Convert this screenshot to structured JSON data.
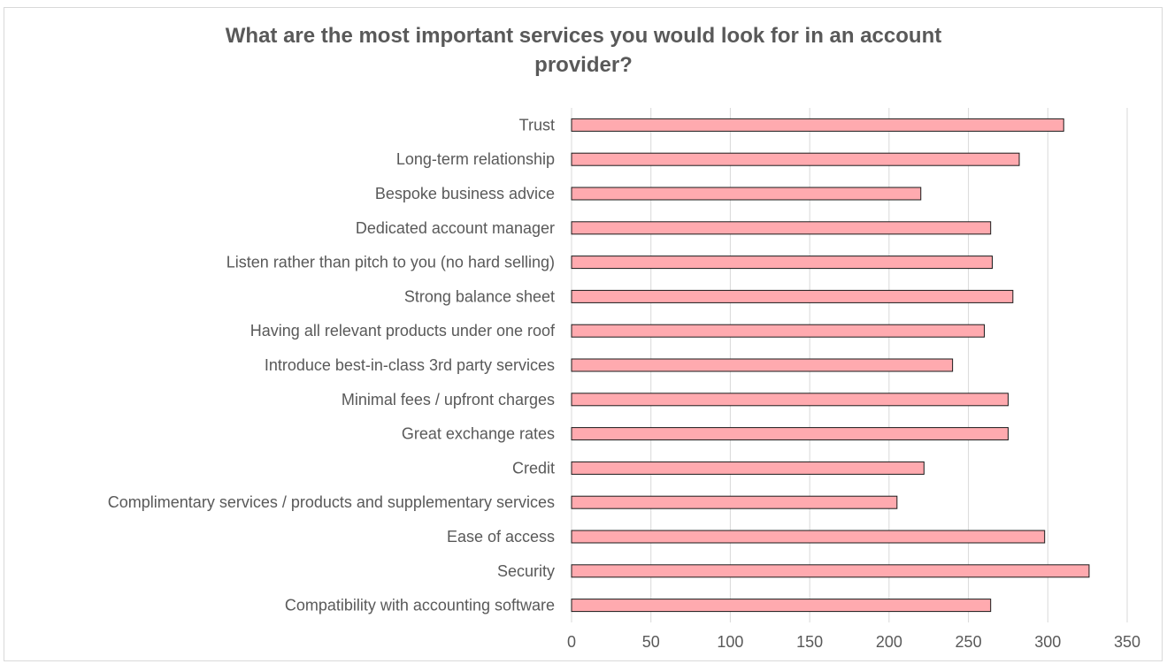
{
  "chart_data": {
    "type": "bar",
    "orientation": "horizontal",
    "title": "What are the most important services you would look for in an account\nprovider?",
    "categories": [
      "Trust ",
      "Long-term relationship",
      "Bespoke business advice",
      "Dedicated account manager",
      "Listen rather than pitch to you (no hard selling)",
      "Strong balance sheet",
      "Having all relevant products under one roof",
      "Introduce best-in-class 3rd party services ",
      "Minimal fees / upfront charges",
      "Great exchange rates",
      "Credit",
      "Complimentary services / products and supplementary services ",
      "Ease of access",
      "Security",
      "Compatibility with accounting software"
    ],
    "values": [
      310,
      282,
      220,
      264,
      265,
      278,
      260,
      240,
      275,
      275,
      222,
      205,
      298,
      326,
      264
    ],
    "xlim": [
      0,
      350
    ],
    "xticks": [
      "0",
      "50",
      "100",
      "150",
      "200",
      "250",
      "300",
      "350"
    ],
    "grid": true,
    "bar_color": "#ffaaaf",
    "bar_edge_color": "#1a1a1a",
    "grid_color": "#d9d9d9"
  }
}
